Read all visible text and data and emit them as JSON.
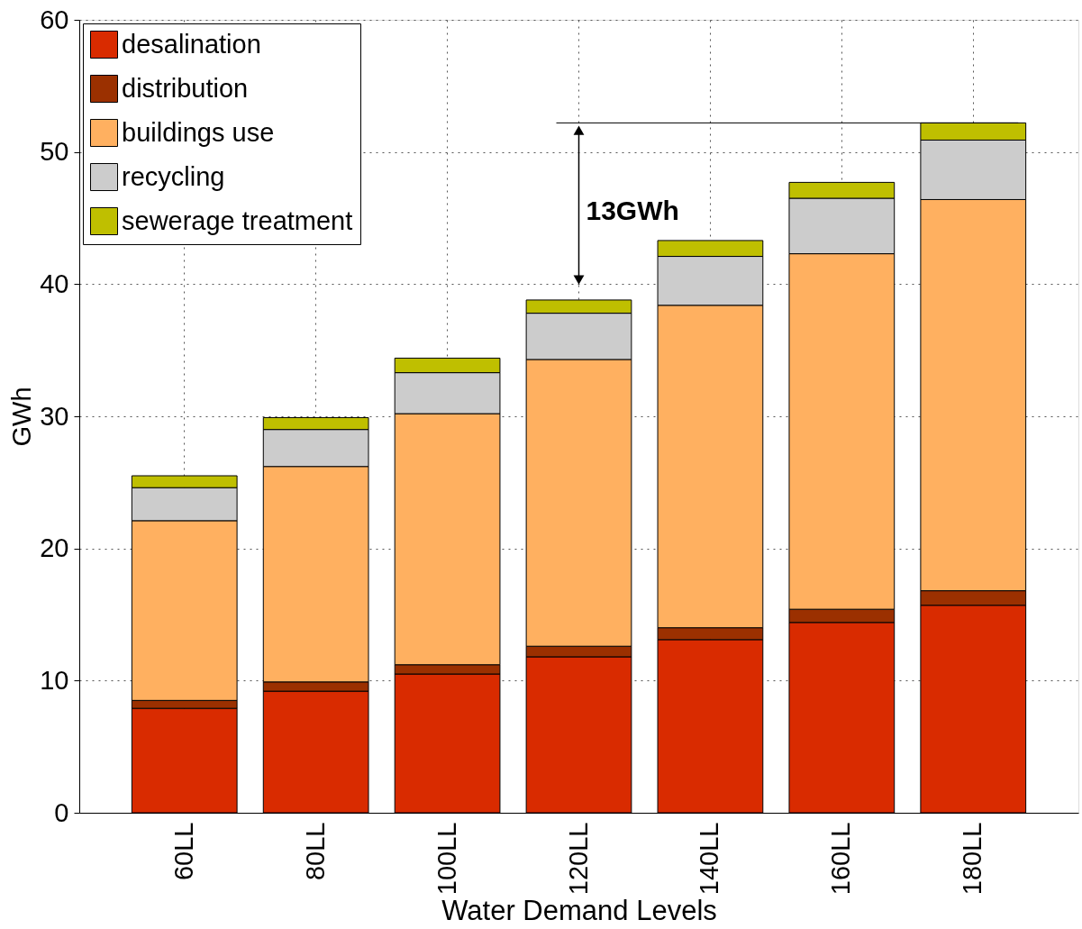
{
  "chart_data": {
    "type": "bar",
    "stacked": true,
    "xlabel": "Water Demand Levels",
    "ylabel": "GWh",
    "categories": [
      "60LL",
      "80LL",
      "100LL",
      "120LL",
      "140LL",
      "160LL",
      "180LL"
    ],
    "series": [
      {
        "name": "desalination",
        "color": "#d92b00",
        "values": [
          7.9,
          9.2,
          10.5,
          11.8,
          13.1,
          14.4,
          15.7
        ]
      },
      {
        "name": "distribution",
        "color": "#9b3000",
        "values": [
          0.6,
          0.7,
          0.7,
          0.8,
          0.9,
          1.0,
          1.1
        ]
      },
      {
        "name": "buildings use",
        "color": "#ffb060",
        "values": [
          13.6,
          16.3,
          19.0,
          21.7,
          24.4,
          26.9,
          29.6
        ]
      },
      {
        "name": "recycling",
        "color": "#cccccc",
        "values": [
          2.5,
          2.8,
          3.1,
          3.5,
          3.7,
          4.2,
          4.5
        ]
      },
      {
        "name": "sewerage treatment",
        "color": "#bfbf00",
        "values": [
          0.9,
          0.9,
          1.1,
          1.0,
          1.2,
          1.2,
          1.3
        ]
      }
    ],
    "ylim": [
      0,
      60
    ],
    "yticks": [
      0,
      10,
      20,
      30,
      40,
      50,
      60
    ],
    "grid": true,
    "legend": "top left",
    "ref_lines": [
      {
        "axis": "y",
        "value": 52.2,
        "color": "#000000",
        "line_style": "solid"
      }
    ],
    "annotations": [
      "13GWh"
    ]
  }
}
